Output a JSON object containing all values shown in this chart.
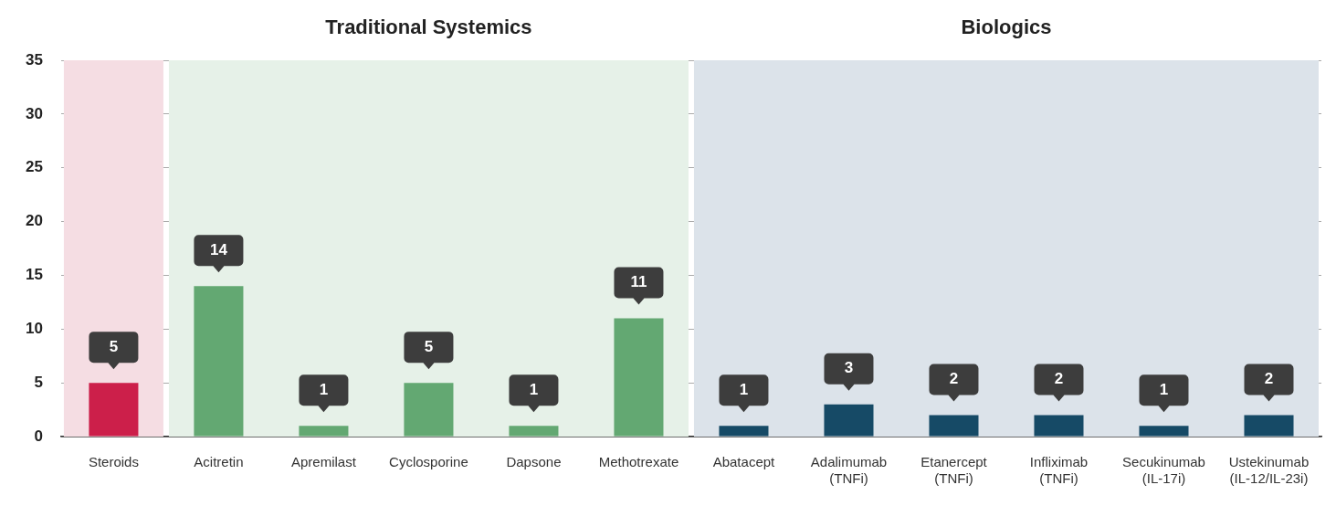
{
  "chart_data": {
    "type": "bar",
    "categories": [
      "Steroids",
      "Acitretin",
      "Apremilast",
      "Cyclosporine",
      "Dapsone",
      "Methotrexate",
      "Abatacept",
      "Adalimumab\n(TNFi)",
      "Etanercept\n(TNFi)",
      "Infliximab\n(TNFi)",
      "Secukinumab\n(IL-17i)",
      "Ustekinumab\n(IL-12/IL-23i)"
    ],
    "values": [
      5,
      14,
      1,
      5,
      1,
      11,
      1,
      3,
      2,
      2,
      1,
      2
    ],
    "colors": [
      "#cc1f4a",
      "#63a872",
      "#63a872",
      "#63a872",
      "#63a872",
      "#63a872",
      "#164a66",
      "#164a66",
      "#164a66",
      "#164a66",
      "#164a66",
      "#164a66"
    ],
    "ylim": [
      0,
      35
    ],
    "yticks": [
      0,
      5,
      10,
      15,
      20,
      25,
      30,
      35
    ],
    "grid": "y",
    "data_labels": true,
    "bands": [
      {
        "axis": "x",
        "from": "Steroids",
        "to": "Steroids",
        "color": "#f5dde3"
      },
      {
        "axis": "x",
        "from": "Acitretin",
        "to": "Methotrexate",
        "label": "Traditional Systemics",
        "color": "#e6f1e8"
      },
      {
        "axis": "x",
        "from": "Abatacept",
        "to": "Ustekinumab\n(IL-12/IL-23i)",
        "label": "Biologics",
        "color": "#dce3ea"
      }
    ]
  }
}
